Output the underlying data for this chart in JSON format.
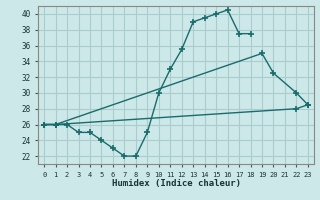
{
  "xlabel": "Humidex (Indice chaleur)",
  "background_color": "#cce8e8",
  "grid_color": "#aacccc",
  "line_color": "#1a6b6b",
  "xlim": [
    -0.5,
    23.5
  ],
  "ylim": [
    21,
    41
  ],
  "yticks": [
    22,
    24,
    26,
    28,
    30,
    32,
    34,
    36,
    38,
    40
  ],
  "xticks": [
    0,
    1,
    2,
    3,
    4,
    5,
    6,
    7,
    8,
    9,
    10,
    11,
    12,
    13,
    14,
    15,
    16,
    17,
    18,
    19,
    20,
    21,
    22,
    23
  ],
  "line1_x": [
    0,
    1,
    2,
    3,
    4,
    5,
    6,
    7,
    8,
    9,
    10,
    11,
    12,
    13,
    14,
    15,
    16,
    17,
    18
  ],
  "line1_y": [
    26,
    26,
    26,
    25,
    25,
    24,
    23,
    22,
    22,
    25,
    30,
    33,
    35.5,
    39,
    39.5,
    40,
    40.5,
    37.5,
    37.5
  ],
  "line2_x": [
    0,
    1,
    19,
    20,
    22,
    23
  ],
  "line2_y": [
    26,
    26,
    35,
    32.5,
    30,
    28.5
  ],
  "line3_x": [
    0,
    1,
    22,
    23
  ],
  "line3_y": [
    26,
    26,
    28,
    28.5
  ]
}
